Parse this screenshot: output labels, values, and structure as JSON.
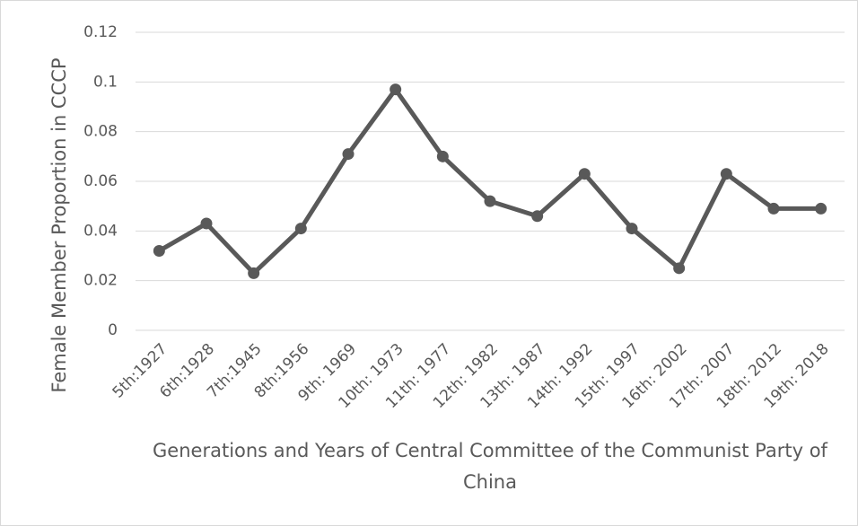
{
  "chart_data": {
    "type": "line",
    "x_label": "Generations and Years of Central Committee of the Communist Party of China",
    "y_label": "Female Member Proportion in CCCP",
    "categories": [
      "5th:1927",
      "6th:1928",
      "7th:1945",
      "8th:1956",
      "9th: 1969",
      "10th: 1973",
      "11th: 1977",
      "12th: 1982",
      "13th: 1987",
      "14th: 1992",
      "15th: 1997",
      "16th: 2002",
      "17th: 2007",
      "18th: 2012",
      "19th: 2018"
    ],
    "values": [
      0.032,
      0.043,
      0.023,
      0.041,
      0.071,
      0.097,
      0.07,
      0.052,
      0.046,
      0.063,
      0.041,
      0.025,
      0.063,
      0.049,
      0.049
    ],
    "color": "#595959",
    "ylim": [
      0,
      0.12
    ],
    "yticks": [
      0,
      0.02,
      0.04,
      0.06,
      0.08,
      0.1,
      0.12
    ],
    "grid": true
  }
}
